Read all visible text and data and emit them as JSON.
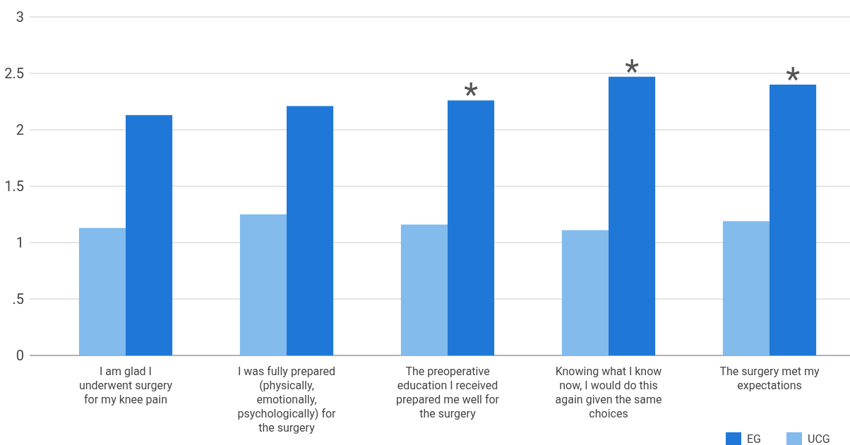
{
  "chart_data": {
    "type": "bar",
    "categories": [
      "I am glad I underwent surgery for my knee pain",
      "I was fully prepared (physically, emotionally, psychologically) for the surgery",
      "The preoperative education I received prepared me well for the surgery",
      "Knowing what I know now, I would do this again given the same choices",
      "The surgery met my expectations"
    ],
    "series": [
      {
        "name": "UCG",
        "color": "#82bbec",
        "values": [
          1.13,
          1.25,
          1.16,
          1.11,
          1.19
        ]
      },
      {
        "name": "EG",
        "color": "#1f78d8",
        "values": [
          2.13,
          2.21,
          2.26,
          2.47,
          2.4
        ]
      }
    ],
    "ylim": [
      0,
      3
    ],
    "yticks": [
      0,
      {
        "value": 0.5,
        "label": ".5"
      },
      1,
      1.5,
      2,
      2.5,
      3
    ],
    "grid": "y",
    "legend": "bottom right",
    "annotations": [
      {
        "text": "*",
        "x": "The preoperative education I received prepared me well for the surgery",
        "y": 2.26
      },
      {
        "text": "*",
        "x": "Knowing what I know now, I would do this again given the same choices",
        "y": 2.47
      },
      {
        "text": "*",
        "x": "The surgery met my expectations",
        "y": 2.4
      }
    ]
  }
}
